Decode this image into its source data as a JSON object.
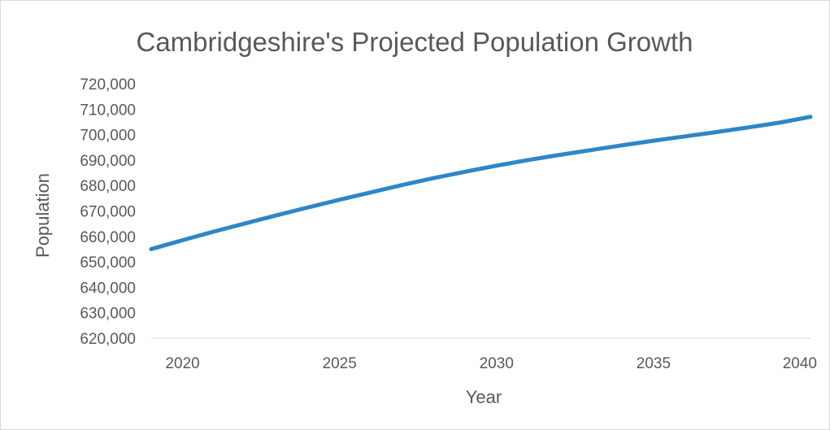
{
  "chart_data": {
    "type": "line",
    "title": "Cambridgeshire's Projected Population Growth",
    "xlabel": "Year",
    "ylabel": "Population",
    "xlim": [
      2019,
      2040
    ],
    "ylim": [
      620000,
      720000
    ],
    "x_ticks": [
      2020,
      2025,
      2030,
      2035,
      2040
    ],
    "y_ticks": [
      620000,
      630000,
      640000,
      650000,
      660000,
      670000,
      680000,
      690000,
      700000,
      710000,
      720000
    ],
    "grid": false,
    "legend": "none",
    "series": [
      {
        "color": "#2E86C8",
        "x": [
          2019,
          2020,
          2021,
          2022,
          2023,
          2024,
          2025,
          2026,
          2027,
          2028,
          2029,
          2030,
          2031,
          2032,
          2033,
          2034,
          2035,
          2036,
          2037,
          2038,
          2039,
          2040
        ],
        "values": [
          655000,
          658500,
          661900,
          665100,
          668300,
          671400,
          674400,
          677300,
          680200,
          682900,
          685400,
          687800,
          690000,
          692000,
          693900,
          695800,
          697600,
          699300,
          701000,
          702800,
          704700,
          707000
        ]
      }
    ]
  }
}
